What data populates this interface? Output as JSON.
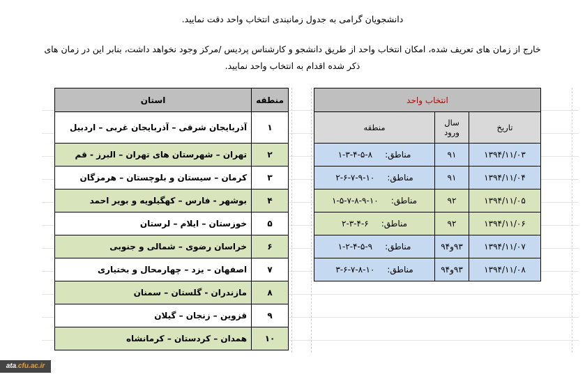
{
  "intro": {
    "line1": "دانشجویان گرامی به جدول زمانبندی انتخاب واحد دقت نمایید.",
    "line2": "خارج از زمان های تعریف شده، امکان انتخاب واحد از طریق دانشجو و کارشناس پردیس /مرکز وجود نخواهد داشت، بنابر این در زمان های",
    "line3": "ذکر شده اقدام به انتخاب واحد نمایید."
  },
  "regions_table": {
    "headers": {
      "region": "منطقه",
      "province": "استان"
    },
    "rows": [
      {
        "region": "۱",
        "provinces": "آذربایجان شرقی – آذربایجان غربی – اردبیل"
      },
      {
        "region": "۲",
        "provinces": "تهران – شهرستان های تهران – البرز - قم"
      },
      {
        "region": "۳",
        "provinces": "کرمان – سیستان و بلوچستان – هرمزگان"
      },
      {
        "region": "۴",
        "provinces": "بوشهر - فارس – کهگیلویه و بویر احمد"
      },
      {
        "region": "۵",
        "provinces": "خوزستان – ایلام – لرستان"
      },
      {
        "region": "۶",
        "provinces": "خراسان رضوی – شمالی و جنوبی"
      },
      {
        "region": "۷",
        "provinces": "اصفهان – یزد – چهارمحال و بختیاری"
      },
      {
        "region": "۸",
        "provinces": "مازندران - گلستان – سمنان"
      },
      {
        "region": "۹",
        "provinces": "قزوین – زنجان – گیلان"
      },
      {
        "region": "۱۰",
        "provinces": "همدان – کردستان – کرمانشاه"
      }
    ]
  },
  "schedule_table": {
    "title": "انتخاب واحد",
    "headers": {
      "date": "تاریخ",
      "entry_year_1": "سال",
      "entry_year_2": "ورود",
      "region": "منطقه"
    },
    "region_label": "مناطق:",
    "rows": [
      {
        "date": "۱۳۹۴/۱۱/۰۳",
        "year": "۹۱",
        "regions": "۱-۳-۴-۵-۸"
      },
      {
        "date": "۱۳۹۴/۱۱/۰۴",
        "year": "۹۱",
        "regions": "۲-۶-۷-۹-۱۰"
      },
      {
        "date": "۱۳۹۴/۱۱/۰۵",
        "year": "۹۲",
        "regions": "۱-۵-۷-۸-۹-۱۰"
      },
      {
        "date": "۱۳۹۴/۱۱/۰۶",
        "year": "۹۲",
        "regions": "۲-۳-۴-۶"
      },
      {
        "date": "۱۳۹۴/۱۱/۰۷",
        "year": "۹۳و۹۴",
        "regions": "۱-۲-۴-۵-۹"
      },
      {
        "date": "۱۳۹۴/۱۱/۰۸",
        "year": "۹۳و۹۴",
        "regions": "۳-۶-۷-۸-۱۰"
      }
    ]
  },
  "logo": {
    "part1": "ata",
    "part2": ".cfu.ac.ir"
  },
  "colors": {
    "header": "#bfbfbf",
    "subheader": "#d9d9d9",
    "green_row": "#d8e4bc",
    "blue_row": "#c5d9f1",
    "title_red": "#c00000"
  }
}
